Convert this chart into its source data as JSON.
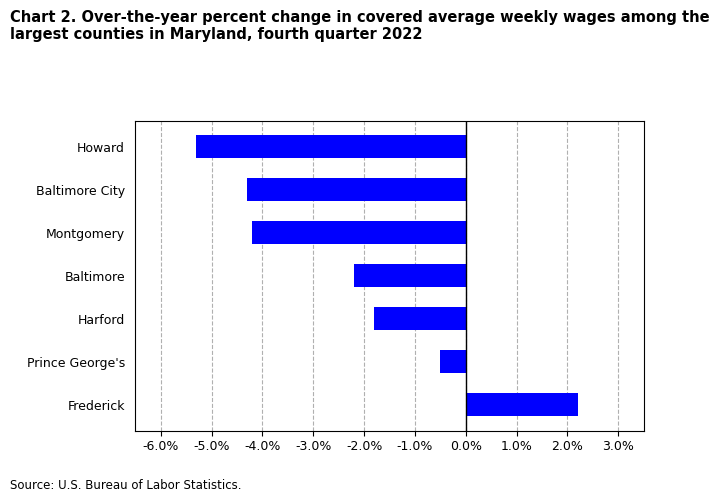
{
  "title_line1": "Chart 2. Over-the-year percent change in covered average weekly wages among the",
  "title_line2": "largest counties in Maryland, fourth quarter 2022",
  "categories": [
    "Howard",
    "Baltimore City",
    "Montgomery",
    "Baltimore",
    "Harford",
    "Prince George's",
    "Frederick"
  ],
  "values": [
    -5.3,
    -4.3,
    -4.2,
    -2.2,
    -1.8,
    -0.5,
    2.2
  ],
  "bar_color": "#0000ff",
  "xlim": [
    -6.5,
    3.5
  ],
  "xticks": [
    -6.0,
    -5.0,
    -4.0,
    -3.0,
    -2.0,
    -1.0,
    0.0,
    1.0,
    2.0,
    3.0
  ],
  "source_text": "Source: U.S. Bureau of Labor Statistics.",
  "background_color": "#ffffff",
  "grid_color": "#b0b0b0",
  "title_fontsize": 10.5,
  "tick_fontsize": 9,
  "source_fontsize": 8.5,
  "bar_height": 0.55
}
